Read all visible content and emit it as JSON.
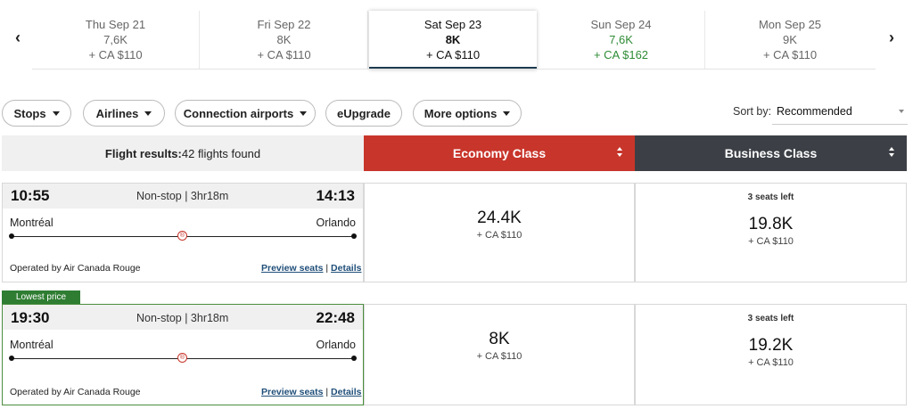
{
  "date_nav": {
    "prev_arrow": "‹",
    "next_arrow": "›",
    "dates": [
      {
        "day": "Thu Sep 21",
        "points": "7,6K",
        "fee": "+ CA $110"
      },
      {
        "day": "Fri Sep 22",
        "points": "8K",
        "fee": "+ CA $110"
      },
      {
        "day": "Sat Sep 23",
        "points": "8K",
        "fee": "+ CA $110"
      },
      {
        "day": "Sun Sep 24",
        "points": "7,6K",
        "fee": "+ CA $162"
      },
      {
        "day": "Mon Sep 25",
        "points": "9K",
        "fee": "+ CA $110"
      }
    ]
  },
  "filters": {
    "stops": "Stops",
    "airlines": "Airlines",
    "connection_airports": "Connection airports",
    "eupgrade": "eUpgrade",
    "more_options": "More options"
  },
  "sort": {
    "label": "Sort by:",
    "value": "Recommended"
  },
  "results_header": {
    "title": "Flight results:",
    "count": "42 flights found",
    "economy": "Economy Class",
    "business": "Business Class"
  },
  "flights": [
    {
      "depart_time": "10:55",
      "stops": "Non-stop | 3hr18m",
      "arrive_time": "14:13",
      "origin": "Montréal",
      "destination": "Orlando",
      "airline_logo": "®",
      "operator": "Operated by Air Canada Rouge",
      "preview_seats": "Preview seats",
      "separator": "|",
      "details": "Details",
      "economy_points": "24.4K",
      "economy_fee": "+ CA $110",
      "business_seats": "3 seats left",
      "business_points": "19.8K",
      "business_fee": "+ CA $110"
    },
    {
      "badge": "Lowest price",
      "depart_time": "19:30",
      "stops": "Non-stop | 3hr18m",
      "arrive_time": "22:48",
      "origin": "Montréal",
      "destination": "Orlando",
      "airline_logo": "®",
      "operator": "Operated by Air Canada Rouge",
      "preview_seats": "Preview seats",
      "separator": "|",
      "details": "Details",
      "economy_points": "8K",
      "economy_fee": "+ CA $110",
      "business_seats": "3 seats left",
      "business_points": "19.2K",
      "business_fee": "+ CA $110"
    }
  ],
  "colors": {
    "economy_header": "#c8352b",
    "business_header": "#3c4046",
    "lowest_price_badge": "#2e7d32",
    "price_drop_green": "#2e8b35",
    "link_blue": "#1f4e79"
  }
}
